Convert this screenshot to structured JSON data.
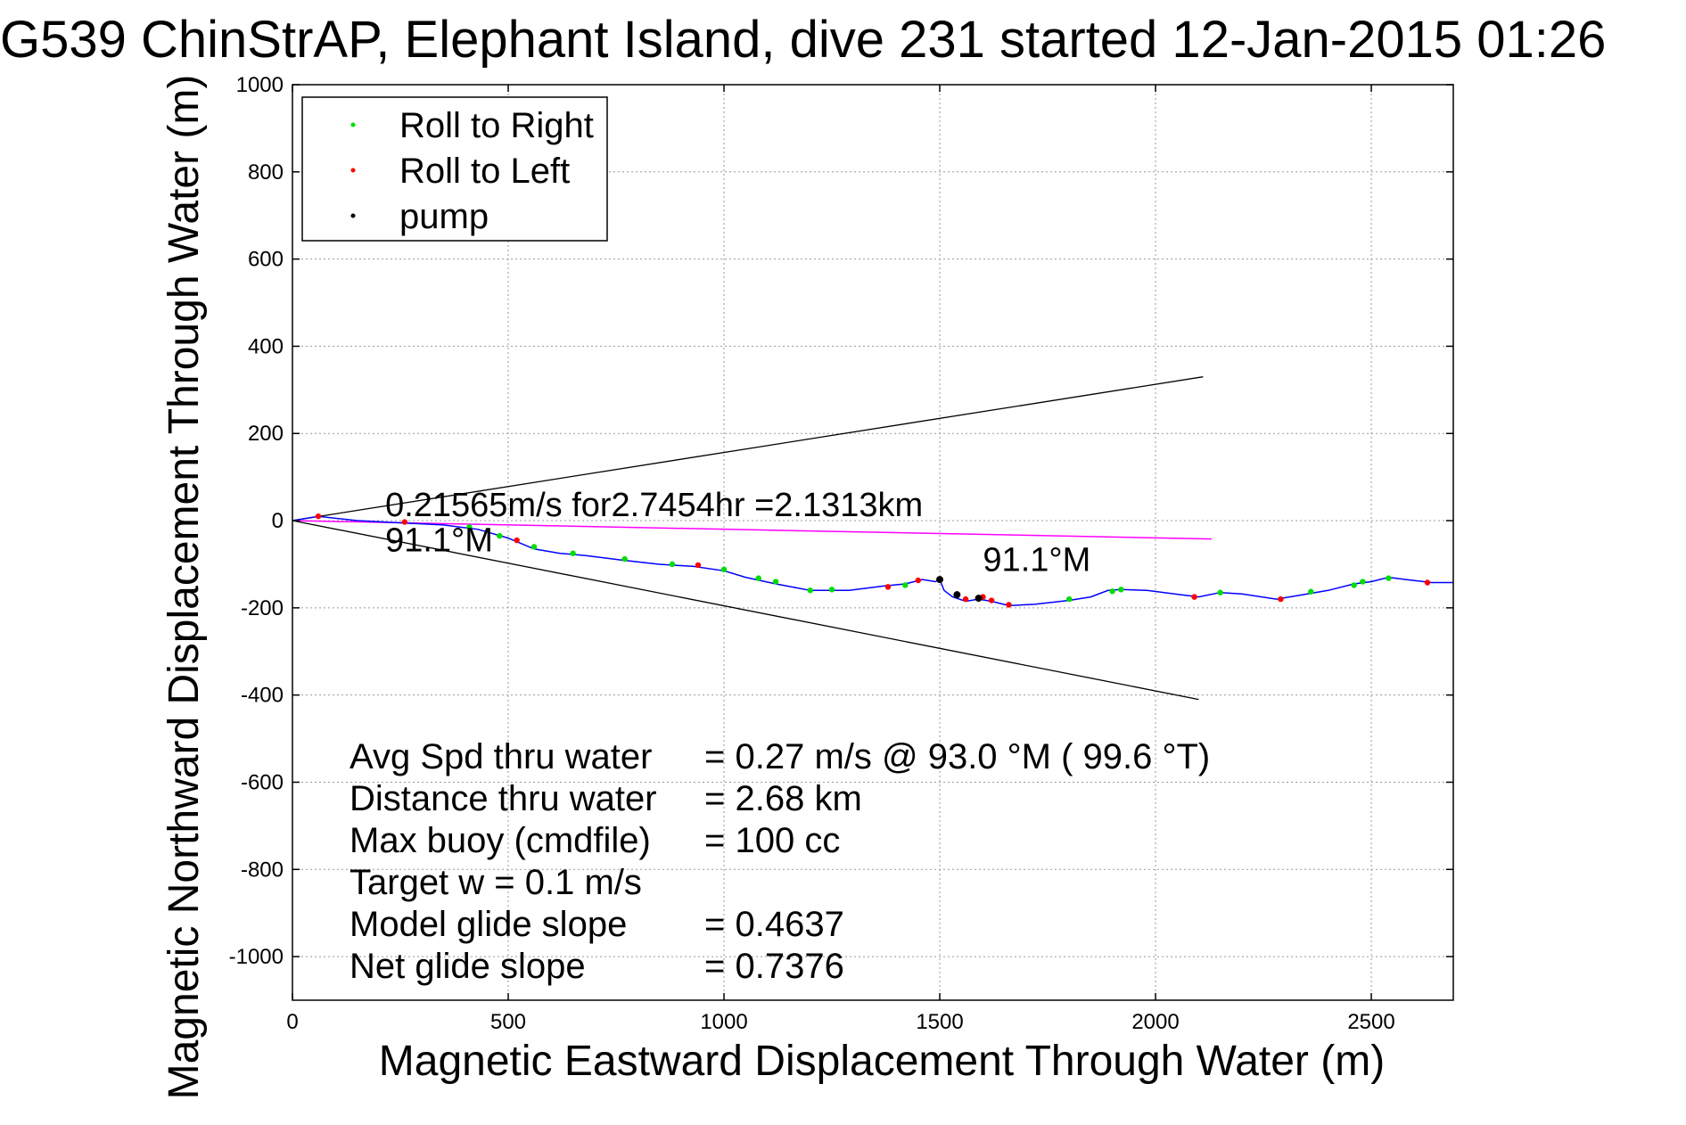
{
  "chart_data": {
    "type": "scatter",
    "title": "G539 ChinStrAP, Elephant Island, dive 231 started 12-Jan-2015 01:26",
    "xlabel": "Magnetic Eastward Displacement Through Water (m)",
    "ylabel": "Magnetic Northward Displacement Through Water (m)",
    "xlim": [
      0,
      2690
    ],
    "ylim": [
      -1100,
      1000
    ],
    "xticks": [
      0,
      500,
      1000,
      1500,
      2000,
      2500
    ],
    "yticks": [
      1000,
      800,
      600,
      400,
      200,
      0,
      -200,
      -400,
      -600,
      -800,
      -1000
    ],
    "grid": true,
    "legend_position": "top-left",
    "legend": [
      {
        "label": "Roll to Right",
        "color": "#00dd00"
      },
      {
        "label": "Roll to Left",
        "color": "#ff0000"
      },
      {
        "label": "pump",
        "color": "#000000"
      }
    ],
    "track": {
      "color": "#0000ff",
      "x": [
        0,
        60,
        150,
        250,
        350,
        430,
        500,
        560,
        620,
        680,
        760,
        850,
        930,
        1000,
        1050,
        1120,
        1200,
        1290,
        1370,
        1420,
        1460,
        1490,
        1500,
        1510,
        1530,
        1560,
        1590,
        1620,
        1660,
        1720,
        1800,
        1850,
        1890,
        1920,
        1980,
        2060,
        2100,
        2150,
        2200,
        2280,
        2340,
        2400,
        2460,
        2500,
        2540,
        2580,
        2640,
        2690
      ],
      "y": [
        0,
        10,
        0,
        -5,
        -10,
        -20,
        -40,
        -65,
        -75,
        -80,
        -90,
        -100,
        -105,
        -115,
        -130,
        -145,
        -160,
        -160,
        -150,
        -145,
        -135,
        -140,
        -135,
        -160,
        -175,
        -185,
        -180,
        -185,
        -195,
        -192,
        -183,
        -175,
        -160,
        -158,
        -160,
        -170,
        -175,
        -165,
        -168,
        -180,
        -170,
        -160,
        -145,
        -140,
        -130,
        -135,
        -142,
        -142
      ]
    },
    "roll_right": {
      "x": [
        410,
        480,
        560,
        650,
        770,
        880,
        1000,
        1080,
        1120,
        1200,
        1250,
        1420,
        1800,
        1900,
        1920,
        2150,
        2360,
        2460,
        2480,
        2540
      ],
      "y": [
        -15,
        -35,
        -60,
        -75,
        -88,
        -100,
        -112,
        -132,
        -140,
        -160,
        -158,
        -148,
        -180,
        -162,
        -158,
        -165,
        -163,
        -148,
        -140,
        -132
      ]
    },
    "roll_left": {
      "x": [
        60,
        260,
        520,
        940,
        1380,
        1450,
        1560,
        1600,
        1620,
        1660,
        2090,
        2290,
        2630
      ],
      "y": [
        10,
        -3,
        -45,
        -102,
        -152,
        -137,
        -180,
        -175,
        -183,
        -193,
        -175,
        -180,
        -142
      ]
    },
    "pump": {
      "x": [
        1500,
        1540,
        1590
      ],
      "y": [
        -135,
        -170,
        -178
      ]
    },
    "cone_lines": [
      {
        "x": [
          0,
          2110
        ],
        "y": [
          0,
          330
        ],
        "color": "#000000"
      },
      {
        "x": [
          0,
          2100
        ],
        "y": [
          0,
          -410
        ],
        "color": "#000000"
      }
    ],
    "heading_line": {
      "x": [
        0,
        2130
      ],
      "y": [
        0,
        -42
      ],
      "color": "#ff00ff"
    },
    "annotations": [
      {
        "text": "0.21565m/s for2.7454hr =2.1313km",
        "x": 215,
        "y": 10
      },
      {
        "text": "91.1°M",
        "x": 215,
        "y": -70
      },
      {
        "text": "91.1°M",
        "x": 1600,
        "y": -115
      }
    ],
    "stats": [
      "Avg Spd thru water     =  0.27 m/s @  93.0 °M ( 99.6 °T)",
      "Distance thru water    =  2.68 km",
      "Max buoy (cmdfile)     = 100 cc",
      "Target w    = 0.1 m/s",
      "Model glide slope       = 0.4637",
      "Net glide slope          = 0.7376"
    ]
  }
}
